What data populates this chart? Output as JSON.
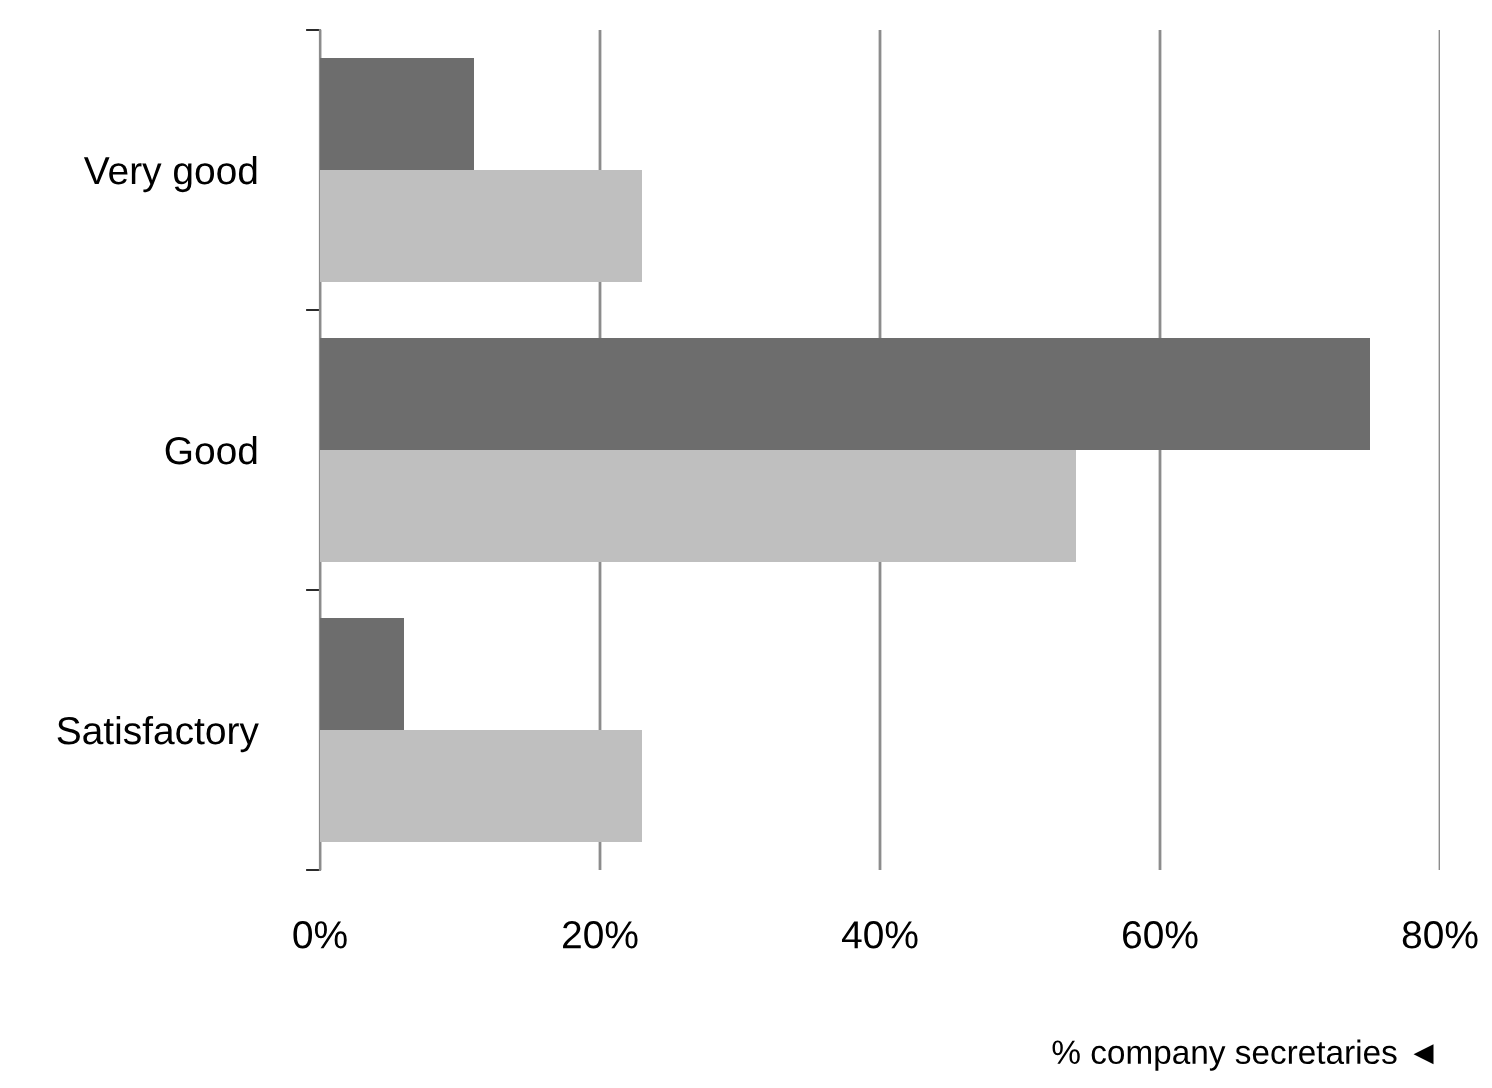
{
  "chart_data": {
    "type": "bar",
    "orientation": "horizontal",
    "categories": [
      "Very good",
      "Good",
      "Satisfactory"
    ],
    "series": [
      {
        "color": "#6d6d6d",
        "values": [
          11,
          75,
          6
        ]
      },
      {
        "color": "#bfbfbf",
        "values": [
          23,
          54,
          23
        ]
      }
    ],
    "xlim": [
      0,
      80
    ],
    "xticks": [
      {
        "value": 0,
        "label": "0%"
      },
      {
        "value": 20,
        "label": "20%"
      },
      {
        "value": 40,
        "label": "40%"
      },
      {
        "value": 60,
        "label": "60%"
      },
      {
        "value": 80,
        "label": "80%"
      }
    ],
    "grid": "x",
    "xlabel": "% company secretaries ◄"
  }
}
